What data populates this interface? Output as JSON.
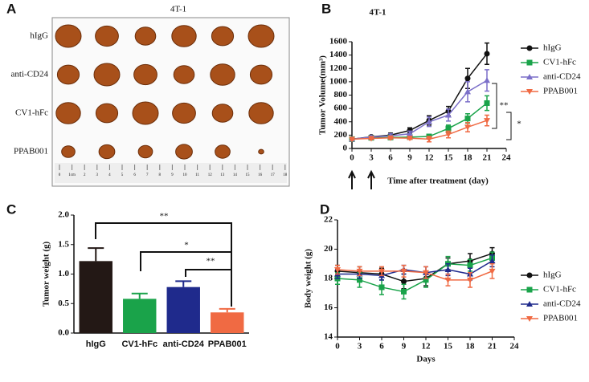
{
  "photo": {
    "label": "A",
    "title": "4T-1",
    "rows": [
      "hIgG",
      "anti-CD24",
      "CV1-hFc",
      "PPAB001"
    ],
    "ruler": [
      "0",
      "1cm",
      "2",
      "3",
      "4",
      "5",
      "6",
      "7",
      "8",
      "9",
      "10",
      "11",
      "12",
      "13",
      "14",
      "15",
      "16",
      "17",
      "18"
    ]
  },
  "chart_data": [
    {
      "type": "line",
      "label": "B",
      "title": "4T-1",
      "x_label": "Time after treatment (day)",
      "y_label": "Tumor Volume(mm³)",
      "x": [
        0,
        3,
        6,
        9,
        12,
        15,
        18,
        21
      ],
      "xlim": [
        0,
        24
      ],
      "xticks": [
        0,
        3,
        6,
        9,
        12,
        15,
        18,
        21,
        24
      ],
      "ylim": [
        0,
        1600
      ],
      "yticks": [
        0,
        200,
        400,
        600,
        800,
        1000,
        1200,
        1400,
        1600
      ],
      "series": [
        {
          "name": "hIgG",
          "color": "#111111",
          "marker": "circle",
          "values": [
            140,
            175,
            200,
            270,
            420,
            560,
            1050,
            1420
          ],
          "errors": [
            20,
            20,
            30,
            40,
            70,
            70,
            150,
            160
          ]
        },
        {
          "name": "CV1-hFc",
          "color": "#1aa34a",
          "marker": "square",
          "values": [
            140,
            160,
            165,
            170,
            180,
            300,
            450,
            680
          ],
          "errors": [
            15,
            20,
            20,
            25,
            30,
            50,
            70,
            110
          ]
        },
        {
          "name": "anti-CD24",
          "color": "#7b6fc9",
          "marker": "triangle",
          "values": [
            140,
            170,
            190,
            220,
            400,
            500,
            850,
            1020
          ],
          "errors": [
            15,
            20,
            30,
            40,
            70,
            90,
            150,
            160
          ]
        },
        {
          "name": "PPAB001",
          "color": "#f06a43",
          "marker": "triangle-down",
          "values": [
            140,
            150,
            160,
            155,
            140,
            210,
            320,
            420
          ],
          "errors": [
            15,
            15,
            20,
            20,
            40,
            50,
            70,
            80
          ]
        }
      ],
      "annotations": [
        "**",
        "*"
      ]
    },
    {
      "type": "bar",
      "label": "C",
      "y_label": "Tumor weight (g)",
      "categories": [
        "hIgG",
        "CV1-hFc",
        "anti-CD24",
        "PPAB001"
      ],
      "values": [
        1.22,
        0.58,
        0.78,
        0.35
      ],
      "errors": [
        0.22,
        0.09,
        0.1,
        0.06
      ],
      "colors": [
        "#231815",
        "#1aa34a",
        "#1f2a8c",
        "#f06a43"
      ],
      "ylim": [
        0,
        2
      ],
      "yticks": [
        {
          "value": 0,
          "label": "0.0"
        },
        0.5,
        {
          "value": 1,
          "label": "1.0"
        },
        1.5,
        {
          "value": 2,
          "label": "2.0"
        }
      ],
      "annotations": [
        "**",
        "*",
        "**"
      ]
    },
    {
      "type": "line",
      "label": "D",
      "x_label": "Days",
      "y_label": "Body weight (g)",
      "x": [
        0,
        3,
        6,
        9,
        12,
        15,
        18,
        21
      ],
      "xlim": [
        0,
        24
      ],
      "xticks": [
        0,
        3,
        6,
        9,
        12,
        15,
        18,
        21,
        24
      ],
      "ylim": [
        14,
        22
      ],
      "yticks": [
        14,
        16,
        18,
        20,
        22
      ],
      "series": [
        {
          "name": "hIgG",
          "color": "#111111",
          "marker": "circle",
          "values": [
            18.5,
            18.4,
            18.3,
            17.8,
            18.0,
            19.0,
            19.2,
            19.7
          ],
          "errors": [
            0.4,
            0.4,
            0.4,
            0.5,
            0.5,
            0.4,
            0.5,
            0.4
          ]
        },
        {
          "name": "CV1-hFc",
          "color": "#1aa34a",
          "marker": "square",
          "values": [
            18.0,
            17.9,
            17.4,
            17.1,
            17.9,
            19.0,
            18.9,
            19.4
          ],
          "errors": [
            0.4,
            0.5,
            0.5,
            0.5,
            0.5,
            0.5,
            0.4,
            0.4
          ]
        },
        {
          "name": "anti-CD24",
          "color": "#1f2a8c",
          "marker": "triangle",
          "values": [
            18.3,
            18.3,
            18.2,
            18.6,
            18.4,
            18.6,
            18.3,
            19.2
          ],
          "errors": [
            0.3,
            0.3,
            0.3,
            0.3,
            0.4,
            0.4,
            0.4,
            0.4
          ]
        },
        {
          "name": "PPAB001",
          "color": "#f06a43",
          "marker": "triangle-down",
          "values": [
            18.6,
            18.5,
            18.5,
            18.5,
            18.4,
            17.9,
            17.9,
            18.5
          ],
          "errors": [
            0.3,
            0.3,
            0.3,
            0.4,
            0.4,
            0.4,
            0.5,
            0.5
          ]
        }
      ]
    }
  ]
}
